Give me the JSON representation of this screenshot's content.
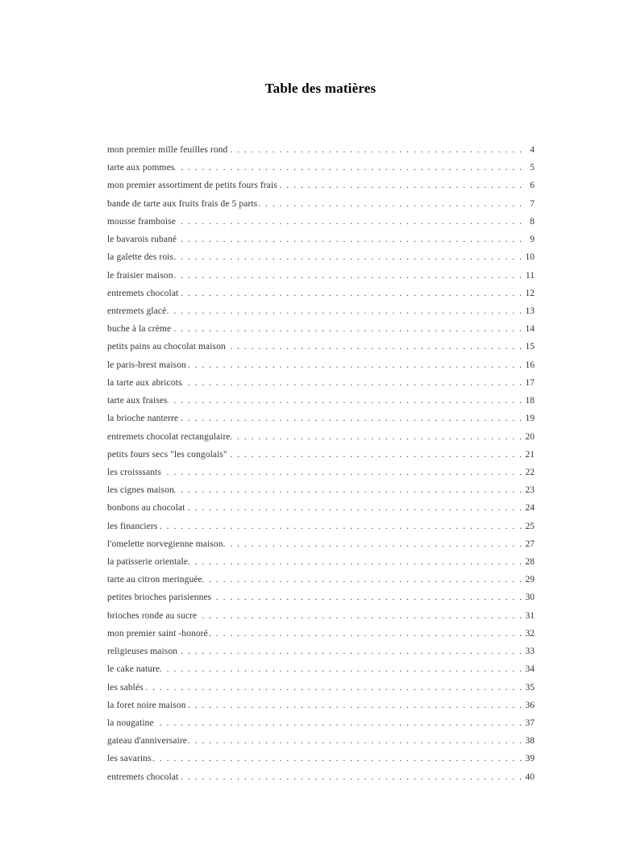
{
  "page": {
    "title": "Table des matières"
  },
  "toc": {
    "entries": [
      {
        "title": "mon premier mille feuilles rond",
        "page": "4"
      },
      {
        "title": "tarte aux pommes",
        "page": "5"
      },
      {
        "title": "mon premier assortiment de petits fours frais",
        "page": "6"
      },
      {
        "title": "bande de tarte aux fruits frais de 5 parts",
        "page": "7"
      },
      {
        "title": "mousse framboise",
        "page": "8"
      },
      {
        "title": "le bavarois rubané",
        "page": "9"
      },
      {
        "title": "la galette des rois",
        "page": "10"
      },
      {
        "title": "le fraisier maison",
        "page": "11"
      },
      {
        "title": "entremets chocolat",
        "page": "12"
      },
      {
        "title": "entremets glacé",
        "page": "13"
      },
      {
        "title": "buche à la crème",
        "page": "14"
      },
      {
        "title": "petits pains au chocolat maison",
        "page": "15"
      },
      {
        "title": "le paris-brest maison",
        "page": "16"
      },
      {
        "title": "la tarte aux abricots",
        "page": "17"
      },
      {
        "title": "tarte aux fraises",
        "page": "18"
      },
      {
        "title": "la brioche nanterre",
        "page": "19"
      },
      {
        "title": "entremets chocolat rectangulaire",
        "page": "20"
      },
      {
        "title": "petits fours secs \"les congolais\"",
        "page": "21"
      },
      {
        "title": "les croisssants",
        "page": "22"
      },
      {
        "title": "les cignes maison",
        "page": "23"
      },
      {
        "title": "bonbons au chocolat",
        "page": "24"
      },
      {
        "title": "les financiers",
        "page": "25"
      },
      {
        "title": "l'omelette norvegienne maison",
        "page": "27"
      },
      {
        "title": "la patisserie orientale",
        "page": "28"
      },
      {
        "title": "tarte au citron meringuée",
        "page": "29"
      },
      {
        "title": "petites brioches parisiennes",
        "page": "30"
      },
      {
        "title": "brioches ronde au sucre",
        "page": "31"
      },
      {
        "title": "mon premier saint -honoré",
        "page": "32"
      },
      {
        "title": "religieuses maison",
        "page": "33"
      },
      {
        "title": "le cake nature",
        "page": "34"
      },
      {
        "title": "les sablés",
        "page": "35"
      },
      {
        "title": "la foret noire maison",
        "page": "36"
      },
      {
        "title": "la nougatine",
        "page": "37"
      },
      {
        "title": "gateau d'anniversaire",
        "page": "38"
      },
      {
        "title": "les savarins",
        "page": "39"
      },
      {
        "title": "entremets chocolat",
        "page": "40"
      }
    ]
  }
}
